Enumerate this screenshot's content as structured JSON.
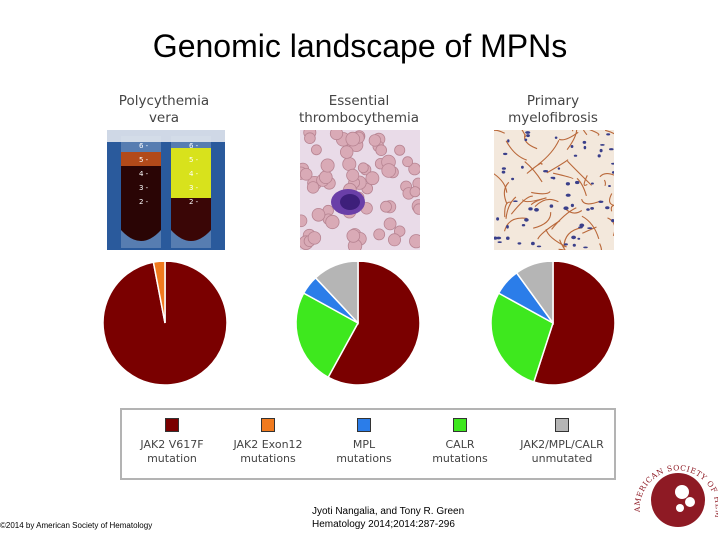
{
  "title": "Genomic landscape of MPNs",
  "panels": [
    {
      "line1": "Polycythemia",
      "line2": "vera"
    },
    {
      "line1": "Essential",
      "line2": "thrombocythemia"
    },
    {
      "line1": "Primary",
      "line2": "myelofibrosis"
    }
  ],
  "tube_scale": [
    "6",
    "5",
    "4",
    "3",
    "2"
  ],
  "legend": [
    {
      "label": "JAK2 V617F\nmutation",
      "color": "#7a0000"
    },
    {
      "label": "JAK2 Exon12\nmutations",
      "color": "#f07a1e"
    },
    {
      "label": "MPL\nmutations",
      "color": "#2b7de9"
    },
    {
      "label": "CALR\nmutations",
      "color": "#3ee81e"
    },
    {
      "label": "JAK2/MPL/CALR\nunmutated",
      "color": "#b5b5b5"
    }
  ],
  "footer": {
    "copyright": "©2014 by American Society of Hematology",
    "authors": "Jyoti Nangalia, and Tony R. Green",
    "citation": "Hematology 2014;2014:287-296"
  },
  "logo_text": "AMERICAN SOCIETY OF HEMATOLOGY",
  "chart_data": [
    {
      "type": "pie",
      "title": "Polycythemia vera",
      "labels": [
        "JAK2 V617F mutation",
        "JAK2 Exon12 mutations"
      ],
      "values": [
        97,
        3
      ],
      "colors": [
        "#7a0000",
        "#f07a1e"
      ]
    },
    {
      "type": "pie",
      "title": "Essential thrombocythemia",
      "labels": [
        "JAK2 V617F mutation",
        "CALR mutations",
        "MPL mutations",
        "JAK2/MPL/CALR unmutated"
      ],
      "values": [
        58,
        25,
        5,
        12
      ],
      "colors": [
        "#7a0000",
        "#3ee81e",
        "#2b7de9",
        "#b5b5b5"
      ]
    },
    {
      "type": "pie",
      "title": "Primary myelofibrosis",
      "labels": [
        "JAK2 V617F mutation",
        "CALR mutations",
        "MPL mutations",
        "JAK2/MPL/CALR unmutated"
      ],
      "values": [
        55,
        28,
        7,
        10
      ],
      "colors": [
        "#7a0000",
        "#3ee81e",
        "#2b7de9",
        "#b5b5b5"
      ]
    }
  ]
}
